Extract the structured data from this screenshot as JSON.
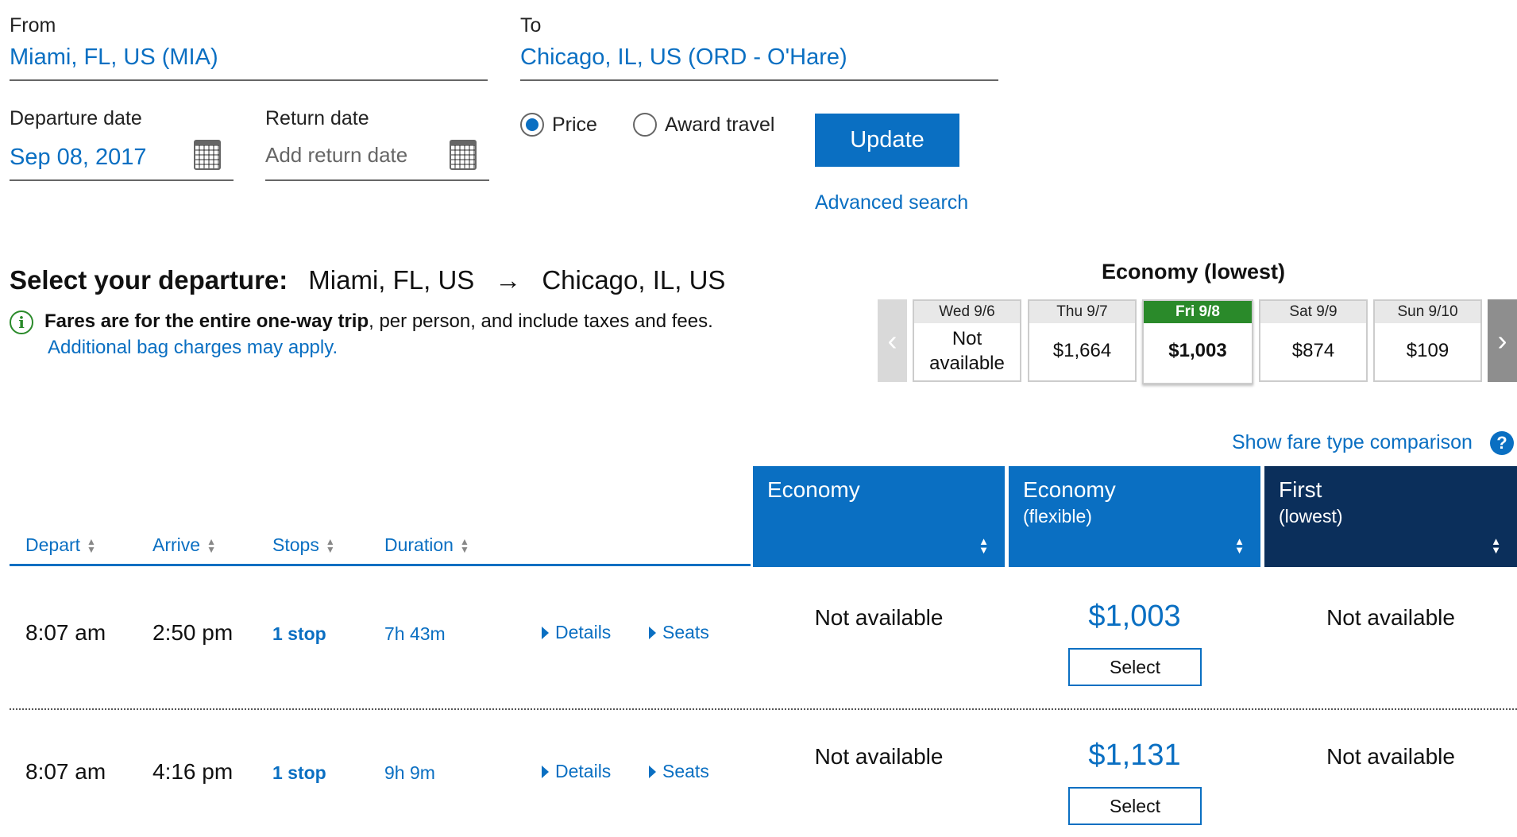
{
  "search": {
    "from_label": "From",
    "from_value": "Miami, FL, US (MIA)",
    "to_label": "To",
    "to_value": "Chicago, IL, US (ORD - O'Hare)",
    "departure_label": "Departure date",
    "departure_value": "Sep 08, 2017",
    "return_label": "Return date",
    "return_placeholder": "Add return date",
    "price_label": "Price",
    "award_label": "Award travel",
    "price_selected": true,
    "update_label": "Update",
    "advanced_label": "Advanced search"
  },
  "heading": {
    "select_label": "Select your departure:",
    "origin": "Miami, FL, US",
    "arrow": "→",
    "destination": "Chicago, IL, US",
    "fares_bold": "Fares are for the entire one-way trip",
    "fares_rest": ", per person, and include taxes and fees.",
    "bag_link": "Additional bag charges may apply."
  },
  "calendar": {
    "title": "Economy (lowest)",
    "days": [
      {
        "day": "Wed 9/6",
        "price": "Not available",
        "selected": false
      },
      {
        "day": "Thu 9/7",
        "price": "$1,664",
        "selected": false
      },
      {
        "day": "Fri 9/8",
        "price": "$1,003",
        "selected": true
      },
      {
        "day": "Sat 9/9",
        "price": "$874",
        "selected": false
      },
      {
        "day": "Sun 9/10",
        "price": "$109",
        "selected": false
      }
    ]
  },
  "fare_compare_label": "Show fare type comparison",
  "help_glyph": "?",
  "columns": {
    "depart": "Depart",
    "arrive": "Arrive",
    "stops": "Stops",
    "duration": "Duration"
  },
  "fare_types": [
    {
      "name": "Economy",
      "sub": "",
      "color": "#0a6fc2"
    },
    {
      "name": "Economy",
      "sub": "(flexible)",
      "color": "#0a6fc2"
    },
    {
      "name": "First",
      "sub": "(lowest)",
      "color": "#0b2f5b"
    }
  ],
  "flights": [
    {
      "depart": "8:07 am",
      "arrive": "2:50 pm",
      "stops": "1 stop",
      "duration": "7h 43m",
      "details": "Details",
      "seats": "Seats",
      "economy": "Not available",
      "flex_price": "$1,003",
      "select": "Select",
      "first": "Not available"
    },
    {
      "depart": "8:07 am",
      "arrive": "4:16 pm",
      "stops": "1 stop",
      "duration": "9h 9m",
      "details": "Details",
      "seats": "Seats",
      "economy": "Not available",
      "flex_price": "$1,131",
      "select": "Select",
      "first": "Not available"
    }
  ]
}
